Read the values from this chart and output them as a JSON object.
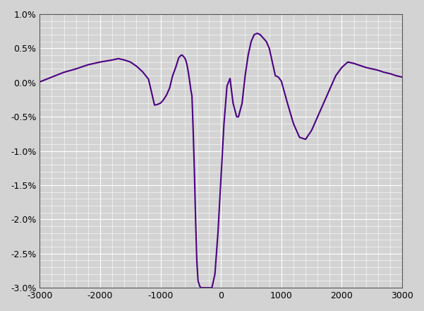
{
  "xlim": [
    -3000,
    3000
  ],
  "ylim": [
    -0.03,
    0.01
  ],
  "xticks": [
    -3000,
    -2000,
    -1000,
    0,
    1000,
    2000,
    3000
  ],
  "yticks": [
    -0.03,
    -0.025,
    -0.02,
    -0.015,
    -0.01,
    -0.005,
    0.0,
    0.005,
    0.01
  ],
  "ytick_labels": [
    "-3.0%",
    "-2.5%",
    "-2.0%",
    "-1.5%",
    "-1.0%",
    "-0.5%",
    "0.0%",
    "0.5%",
    "1.0%"
  ],
  "line_color": "#4B0082",
  "bg_color": "#D3D3D3",
  "grid_color": "#FFFFFF",
  "x_points": [
    -3000,
    -2800,
    -2600,
    -2400,
    -2200,
    -2000,
    -1800,
    -1700,
    -1600,
    -1500,
    -1400,
    -1300,
    -1200,
    -1100,
    -1050,
    -1000,
    -950,
    -900,
    -850,
    -800,
    -750,
    -700,
    -680,
    -660,
    -640,
    -620,
    -600,
    -580,
    -560,
    -540,
    -520,
    -500,
    -480,
    -460,
    -440,
    -420,
    -400,
    -380,
    -350,
    -330,
    -310,
    -290,
    -270,
    -250,
    -230,
    -210,
    -190,
    -170,
    -150,
    -100,
    -50,
    0,
    50,
    100,
    150,
    200,
    230,
    260,
    290,
    320,
    350,
    400,
    450,
    500,
    550,
    600,
    650,
    700,
    750,
    800,
    850,
    900,
    950,
    1000,
    1100,
    1200,
    1300,
    1400,
    1500,
    1600,
    1700,
    1800,
    1900,
    2000,
    2100,
    2200,
    2300,
    2400,
    2500,
    2600,
    2700,
    2800,
    2900,
    3000
  ],
  "y_points": [
    0.0001,
    0.0008,
    0.0015,
    0.002,
    0.0026,
    0.003,
    0.0033,
    0.0035,
    0.0033,
    0.003,
    0.0024,
    0.0016,
    0.0005,
    -0.0033,
    -0.0032,
    -0.003,
    -0.0025,
    -0.0018,
    -0.0008,
    0.001,
    0.0022,
    0.0036,
    0.0038,
    0.004,
    0.004,
    0.0038,
    0.0036,
    0.0032,
    0.0025,
    0.0015,
    0.0003,
    -0.001,
    -0.002,
    -0.007,
    -0.013,
    -0.02,
    -0.026,
    -0.029,
    -0.0298,
    -0.03,
    -0.03,
    -0.03,
    -0.03,
    -0.03,
    -0.03,
    -0.03,
    -0.03,
    -0.03,
    -0.03,
    -0.028,
    -0.022,
    -0.014,
    -0.006,
    -0.0005,
    0.0006,
    -0.003,
    -0.004,
    -0.005,
    -0.005,
    -0.004,
    -0.003,
    0.001,
    0.004,
    0.006,
    0.007,
    0.0072,
    0.007,
    0.0065,
    0.006,
    0.005,
    0.003,
    0.001,
    0.0008,
    0.0002,
    -0.003,
    -0.006,
    -0.008,
    -0.0083,
    -0.007,
    -0.005,
    -0.003,
    -0.001,
    0.001,
    0.0022,
    0.003,
    0.0028,
    0.0025,
    0.0022,
    0.002,
    0.0018,
    0.0015,
    0.0013,
    0.001,
    0.0008
  ]
}
